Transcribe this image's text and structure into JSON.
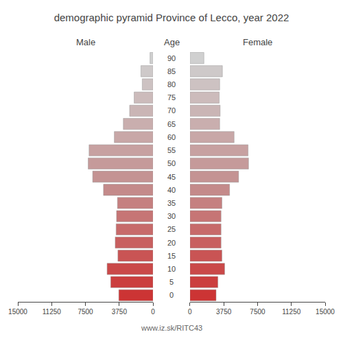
{
  "chart_data": {
    "type": "bar",
    "orientation": "horizontal",
    "title": "demographic pyramid Province of Lecco, year 2022",
    "ylabel": "Age",
    "categories": [
      "0",
      "5",
      "10",
      "15",
      "20",
      "25",
      "30",
      "35",
      "40",
      "45",
      "50",
      "55",
      "60",
      "65",
      "70",
      "75",
      "80",
      "85",
      "90"
    ],
    "series": [
      {
        "name": "Male",
        "values": [
          3800,
          4700,
          5100,
          3900,
          4200,
          4100,
          4050,
          3950,
          5500,
          6700,
          7200,
          7100,
          4300,
          3300,
          2600,
          2100,
          1200,
          1350,
          340
        ],
        "colors": [
          "#cc3434",
          "#cb3e3e",
          "#ca4949",
          "#c95454",
          "#c85f5f",
          "#c76a6a",
          "#c67575",
          "#c58080",
          "#c48a8a",
          "#c49393",
          "#c59a9a",
          "#c7a1a1",
          "#c8a7a7",
          "#c9aeae",
          "#cab5b5",
          "#ccbbbb",
          "#cdc2c2",
          "#cec9c9",
          "#d0d0d0"
        ]
      },
      {
        "name": "Female",
        "values": [
          2900,
          3100,
          3850,
          3550,
          3450,
          3450,
          3450,
          3550,
          4400,
          5400,
          6500,
          6450,
          4900,
          3300,
          3350,
          3250,
          3300,
          3600,
          1550
        ],
        "colors": [
          "#cc3434",
          "#cb3e3e",
          "#ca4949",
          "#c95454",
          "#c85f5f",
          "#c76a6a",
          "#c67575",
          "#c58080",
          "#c48a8a",
          "#c49393",
          "#c59a9a",
          "#c7a1a1",
          "#c8a7a7",
          "#c9aeae",
          "#cab5b5",
          "#ccbbbb",
          "#cdc2c2",
          "#cec9c9",
          "#d0d0d0"
        ]
      }
    ],
    "xlim": [
      0,
      15000
    ],
    "xticks": [
      0,
      3750,
      7500,
      11250,
      15000
    ],
    "grid": false,
    "annotations": [
      "www.iz.sk/RITC43"
    ]
  }
}
